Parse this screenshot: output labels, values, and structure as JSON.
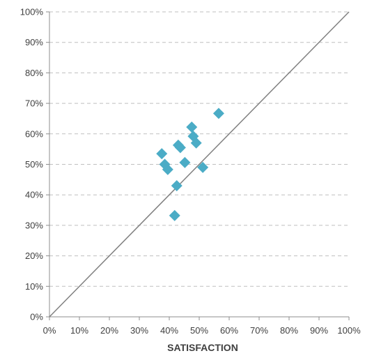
{
  "chart_data": {
    "type": "scatter",
    "xlabel": "SATISFACTION",
    "ylabel": "",
    "xlim": [
      0,
      100
    ],
    "ylim": [
      0,
      100
    ],
    "x_ticks": [
      "0%",
      "10%",
      "20%",
      "30%",
      "40%",
      "50%",
      "60%",
      "70%",
      "80%",
      "90%",
      "100%"
    ],
    "y_ticks": [
      "0%",
      "10%",
      "20%",
      "30%",
      "40%",
      "50%",
      "60%",
      "70%",
      "80%",
      "90%",
      "100%"
    ],
    "grid": "horizontal dashed",
    "reference_line": {
      "from": [
        0,
        0
      ],
      "to": [
        100,
        100
      ]
    },
    "marker": "diamond",
    "marker_color": "#4BACC6",
    "series": [
      {
        "points": [
          {
            "x": 37.5,
            "y": 53.5
          },
          {
            "x": 38.5,
            "y": 50.0
          },
          {
            "x": 39.5,
            "y": 48.3
          },
          {
            "x": 41.8,
            "y": 33.2
          },
          {
            "x": 42.5,
            "y": 43.0
          },
          {
            "x": 43.0,
            "y": 56.3
          },
          {
            "x": 43.7,
            "y": 55.5
          },
          {
            "x": 45.2,
            "y": 50.6
          },
          {
            "x": 47.5,
            "y": 62.2
          },
          {
            "x": 48.0,
            "y": 59.2
          },
          {
            "x": 49.0,
            "y": 57.0
          },
          {
            "x": 51.2,
            "y": 49.0
          },
          {
            "x": 56.5,
            "y": 66.7
          }
        ]
      }
    ]
  }
}
